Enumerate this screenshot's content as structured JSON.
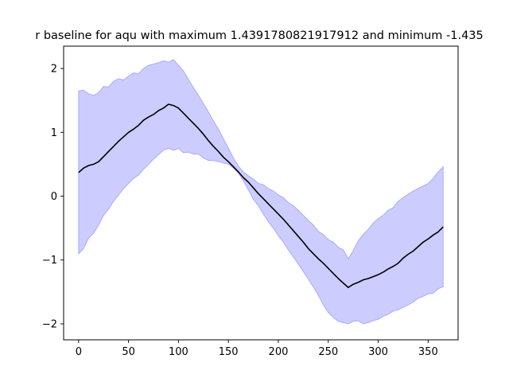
{
  "chart_data": {
    "type": "area",
    "title": "r baseline for aqu with maximum 1.4391780821917912 and minimum -1.435",
    "xlabel": "",
    "ylabel": "",
    "xlim": [
      -15,
      380
    ],
    "ylim": [
      -2.25,
      2.35
    ],
    "xticks": [
      0,
      50,
      100,
      150,
      200,
      250,
      300,
      350
    ],
    "yticks": [
      -2,
      -1,
      0,
      1,
      2
    ],
    "grid": false,
    "legend": "none",
    "colors": {
      "band_fill": "#ccccff",
      "band_edge": "#aaaaff",
      "line": "#000000"
    },
    "series": [
      {
        "role": "mean-line",
        "x": [
          0,
          5,
          10,
          15,
          20,
          25,
          30,
          35,
          40,
          45,
          50,
          55,
          60,
          65,
          70,
          75,
          80,
          85,
          90,
          95,
          100,
          105,
          110,
          115,
          120,
          125,
          130,
          135,
          140,
          145,
          150,
          155,
          160,
          165,
          170,
          175,
          180,
          185,
          190,
          195,
          200,
          205,
          210,
          215,
          220,
          225,
          230,
          235,
          240,
          245,
          250,
          255,
          260,
          265,
          270,
          275,
          280,
          285,
          290,
          295,
          300,
          305,
          310,
          315,
          320,
          325,
          330,
          335,
          340,
          345,
          350,
          355,
          360,
          365
        ],
        "y": [
          0.37,
          0.44,
          0.48,
          0.5,
          0.54,
          0.62,
          0.7,
          0.78,
          0.86,
          0.93,
          1.0,
          1.05,
          1.11,
          1.19,
          1.24,
          1.28,
          1.34,
          1.38,
          1.44,
          1.42,
          1.38,
          1.3,
          1.22,
          1.14,
          1.06,
          0.97,
          0.87,
          0.78,
          0.7,
          0.61,
          0.54,
          0.46,
          0.38,
          0.29,
          0.22,
          0.13,
          0.04,
          -0.04,
          -0.12,
          -0.2,
          -0.28,
          -0.36,
          -0.45,
          -0.54,
          -0.63,
          -0.72,
          -0.82,
          -0.9,
          -0.98,
          -1.05,
          -1.13,
          -1.21,
          -1.29,
          -1.36,
          -1.43,
          -1.38,
          -1.35,
          -1.31,
          -1.29,
          -1.26,
          -1.23,
          -1.19,
          -1.14,
          -1.1,
          -1.05,
          -0.97,
          -0.91,
          -0.86,
          -0.79,
          -0.72,
          -0.67,
          -0.61,
          -0.56,
          -0.48
        ]
      },
      {
        "role": "band-upper",
        "x": [
          0,
          5,
          10,
          15,
          20,
          25,
          30,
          35,
          40,
          45,
          50,
          55,
          60,
          65,
          70,
          75,
          80,
          85,
          90,
          95,
          100,
          105,
          110,
          115,
          120,
          125,
          130,
          135,
          140,
          145,
          150,
          155,
          160,
          165,
          170,
          175,
          180,
          185,
          190,
          195,
          200,
          205,
          210,
          215,
          220,
          225,
          230,
          235,
          240,
          245,
          250,
          255,
          260,
          265,
          270,
          275,
          280,
          285,
          290,
          295,
          300,
          305,
          310,
          315,
          320,
          325,
          330,
          335,
          340,
          345,
          350,
          355,
          360,
          365
        ],
        "y": [
          1.65,
          1.66,
          1.6,
          1.58,
          1.62,
          1.72,
          1.71,
          1.8,
          1.84,
          1.82,
          1.88,
          1.93,
          1.92,
          2.0,
          2.05,
          2.07,
          2.09,
          2.12,
          2.1,
          2.14,
          2.05,
          1.96,
          1.83,
          1.7,
          1.58,
          1.45,
          1.32,
          1.18,
          1.05,
          0.9,
          0.75,
          0.6,
          0.47,
          0.38,
          0.32,
          0.27,
          0.2,
          0.18,
          0.12,
          0.08,
          0.02,
          -0.02,
          -0.1,
          -0.15,
          -0.22,
          -0.3,
          -0.38,
          -0.45,
          -0.55,
          -0.6,
          -0.68,
          -0.72,
          -0.8,
          -0.84,
          -0.98,
          -0.85,
          -0.7,
          -0.6,
          -0.52,
          -0.42,
          -0.35,
          -0.3,
          -0.22,
          -0.18,
          -0.08,
          -0.02,
          0.03,
          0.08,
          0.12,
          0.16,
          0.2,
          0.28,
          0.38,
          0.46
        ]
      },
      {
        "role": "band-lower",
        "x": [
          0,
          5,
          10,
          15,
          20,
          25,
          30,
          35,
          40,
          45,
          50,
          55,
          60,
          65,
          70,
          75,
          80,
          85,
          90,
          95,
          100,
          105,
          110,
          115,
          120,
          125,
          130,
          135,
          140,
          145,
          150,
          155,
          160,
          165,
          170,
          175,
          180,
          185,
          190,
          195,
          200,
          205,
          210,
          215,
          220,
          225,
          230,
          235,
          240,
          245,
          250,
          255,
          260,
          265,
          270,
          275,
          280,
          285,
          290,
          295,
          300,
          305,
          310,
          315,
          320,
          325,
          330,
          335,
          340,
          345,
          350,
          355,
          360,
          365
        ],
        "y": [
          -0.9,
          -0.82,
          -0.66,
          -0.58,
          -0.45,
          -0.3,
          -0.2,
          -0.08,
          0.02,
          0.12,
          0.2,
          0.28,
          0.33,
          0.42,
          0.5,
          0.58,
          0.65,
          0.72,
          0.75,
          0.72,
          0.75,
          0.68,
          0.69,
          0.66,
          0.66,
          0.6,
          0.56,
          0.56,
          0.54,
          0.52,
          0.5,
          0.44,
          0.36,
          0.24,
          0.1,
          -0.05,
          -0.15,
          -0.28,
          -0.4,
          -0.5,
          -0.62,
          -0.72,
          -0.84,
          -0.95,
          -1.06,
          -1.18,
          -1.3,
          -1.42,
          -1.55,
          -1.7,
          -1.82,
          -1.9,
          -1.96,
          -1.98,
          -2.0,
          -1.96,
          -1.95,
          -2.0,
          -1.98,
          -1.95,
          -1.93,
          -1.88,
          -1.85,
          -1.8,
          -1.78,
          -1.74,
          -1.7,
          -1.66,
          -1.6,
          -1.57,
          -1.53,
          -1.52,
          -1.45,
          -1.42
        ]
      }
    ]
  }
}
